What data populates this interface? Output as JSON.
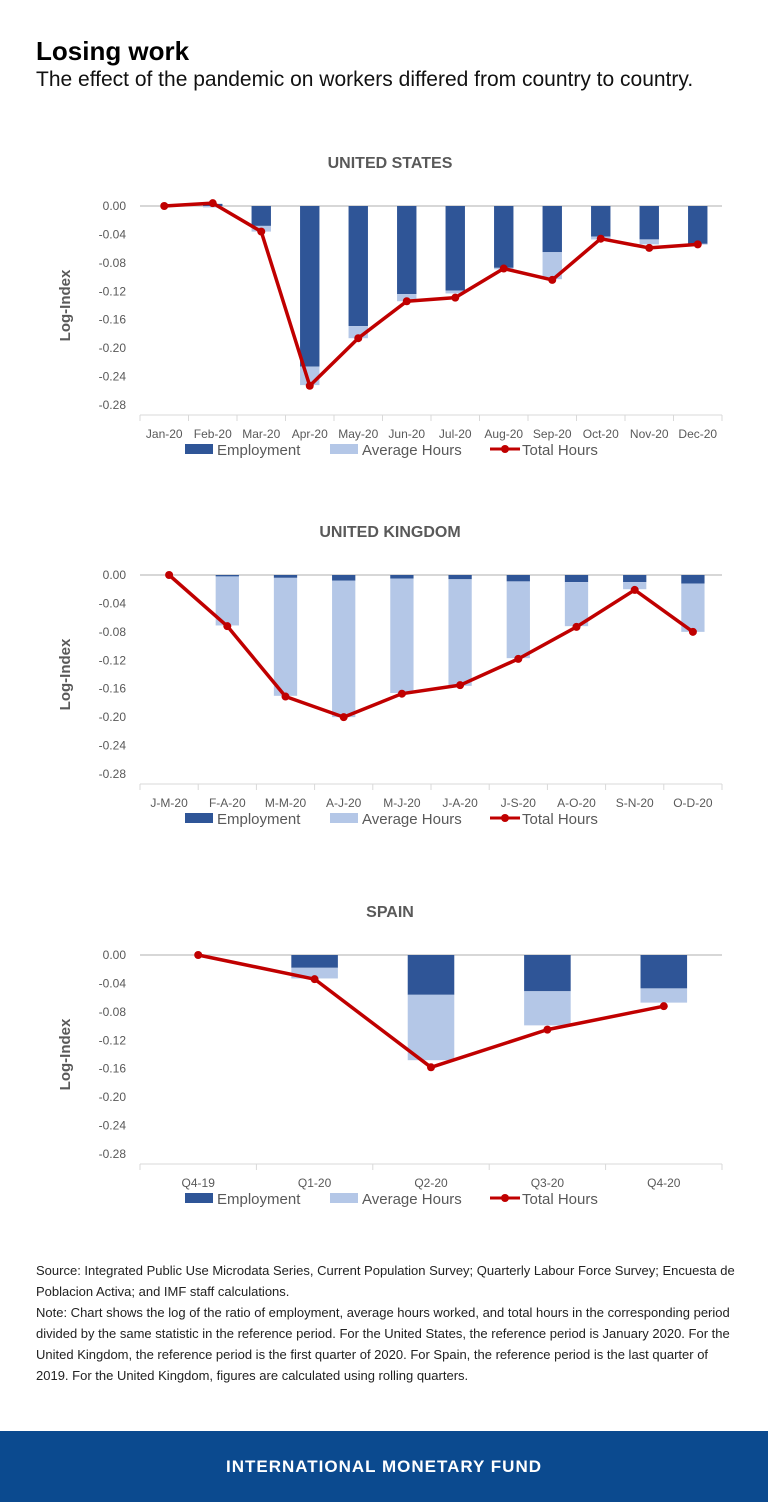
{
  "header": {
    "title": "Losing work",
    "subtitle": "The effect of the pandemic on workers differed from country to country."
  },
  "colors": {
    "employment": "#2f5597",
    "average_hours": "#b4c7e7",
    "total_hours": "#c00000"
  },
  "chart_data": [
    {
      "type": "bar",
      "title": "UNITED STATES",
      "ylabel": "Log-Index",
      "ylim": [
        -0.28,
        0.0
      ],
      "yticks": [
        "0.00",
        "-0.04",
        "-0.08",
        "-0.12",
        "-0.16",
        "-0.20",
        "-0.24",
        "-0.28"
      ],
      "categories": [
        "Jan-20",
        "Feb-20",
        "Mar-20",
        "Apr-20",
        "May-20",
        "Jun-20",
        "Jul-20",
        "Aug-20",
        "Sep-20",
        "Oct-20",
        "Nov-20",
        "Dec-20"
      ],
      "legend": [
        "Employment",
        "Average Hours",
        "Total Hours"
      ],
      "series": [
        {
          "name": "Employment",
          "values": [
            0,
            0.003,
            -0.028,
            -0.226,
            -0.169,
            -0.124,
            -0.119,
            -0.087,
            -0.065,
            -0.043,
            -0.047,
            -0.054
          ]
        },
        {
          "name": "Average Hours",
          "values": [
            0,
            -0.002,
            -0.008,
            -0.026,
            -0.017,
            -0.01,
            -0.004,
            -0.002,
            -0.038,
            -0.004,
            -0.007,
            0.001
          ]
        },
        {
          "name": "Total Hours",
          "values": [
            0,
            0.004,
            -0.036,
            -0.253,
            -0.186,
            -0.134,
            -0.129,
            -0.088,
            -0.104,
            -0.046,
            -0.059,
            -0.054
          ]
        }
      ]
    },
    {
      "type": "bar",
      "title": "UNITED KINGDOM",
      "ylabel": "Log-Index",
      "ylim": [
        -0.28,
        0.0
      ],
      "yticks": [
        "0.00",
        "-0.04",
        "-0.08",
        "-0.12",
        "-0.16",
        "-0.20",
        "-0.24",
        "-0.28"
      ],
      "categories": [
        "J-M-20",
        "F-A-20",
        "M-M-20",
        "A-J-20",
        "M-J-20",
        "J-A-20",
        "J-S-20",
        "A-O-20",
        "S-N-20",
        "O-D-20"
      ],
      "legend": [
        "Employment",
        "Average Hours",
        "Total Hours"
      ],
      "series": [
        {
          "name": "Employment",
          "values": [
            0,
            -0.002,
            -0.004,
            -0.008,
            -0.005,
            -0.006,
            -0.009,
            -0.01,
            -0.01,
            -0.012
          ]
        },
        {
          "name": "Average Hours",
          "values": [
            0,
            -0.069,
            -0.166,
            -0.192,
            -0.161,
            -0.15,
            -0.108,
            -0.062,
            -0.01,
            -0.068
          ]
        },
        {
          "name": "Total Hours",
          "values": [
            0,
            -0.072,
            -0.171,
            -0.2,
            -0.167,
            -0.155,
            -0.118,
            -0.073,
            -0.021,
            -0.08
          ]
        }
      ]
    },
    {
      "type": "bar",
      "title": "SPAIN",
      "ylabel": "Log-Index",
      "ylim": [
        -0.28,
        0.0
      ],
      "yticks": [
        "0.00",
        "-0.04",
        "-0.08",
        "-0.12",
        "-0.16",
        "-0.20",
        "-0.24",
        "-0.28"
      ],
      "categories": [
        "Q4-19",
        "Q1-20",
        "Q2-20",
        "Q3-20",
        "Q4-20"
      ],
      "legend": [
        "Employment",
        "Average Hours",
        "Total Hours"
      ],
      "series": [
        {
          "name": "Employment",
          "values": [
            0,
            -0.018,
            -0.056,
            -0.051,
            -0.047
          ]
        },
        {
          "name": "Average Hours",
          "values": [
            0,
            -0.015,
            -0.092,
            -0.048,
            -0.02
          ]
        },
        {
          "name": "Total Hours",
          "values": [
            0,
            -0.034,
            -0.158,
            -0.105,
            -0.072
          ]
        }
      ]
    }
  ],
  "notes": {
    "source": "Source: Integrated Public Use Microdata Series, Current Population Survey; Quarterly Labour Force Survey; Encuesta de Poblacion Activa; and IMF staff calculations.",
    "note": "Note: Chart shows the log of the ratio of employment, average hours worked, and total hours in the corresponding period divided by the same statistic in the reference period. For the United States, the reference period is January 2020. For the United Kingdom, the reference period is the first quarter of 2020. For Spain, the reference period is the last quarter of 2019. For the United Kingdom, figures are calculated using rolling quarters."
  },
  "footer": {
    "label": "INTERNATIONAL MONETARY FUND"
  }
}
